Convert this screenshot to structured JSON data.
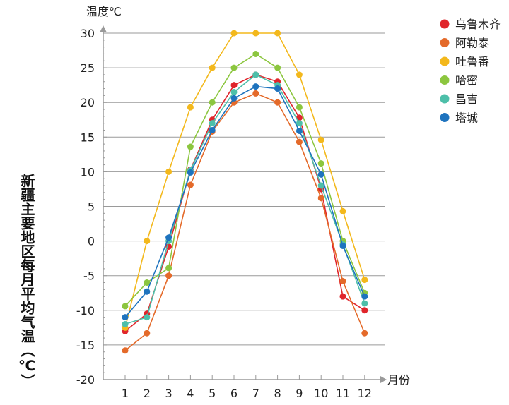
{
  "chart_data": {
    "type": "line",
    "title": "新疆主要地区每月平均气温（℃）",
    "ylabel": "温度℃",
    "xlabel": "月份",
    "ylim": [
      -20,
      30
    ],
    "yticks": [
      30,
      25,
      20,
      15,
      10,
      5,
      0,
      -5,
      -10,
      -15,
      -20
    ],
    "categories": [
      "1",
      "2",
      "3",
      "4",
      "5",
      "6",
      "7",
      "8",
      "9",
      "10",
      "11",
      "12"
    ],
    "series": [
      {
        "name": "乌鲁木齐",
        "color": "#e0252b",
        "values": [
          -13,
          -10.5,
          -0.8,
          10.3,
          17.5,
          22.5,
          24,
          23,
          17.8,
          7.5,
          -8,
          -10
        ]
      },
      {
        "name": "阿勒泰",
        "color": "#e46a2a",
        "values": [
          -15.8,
          -13.3,
          -5,
          8.1,
          15.8,
          20,
          21.3,
          20,
          14.3,
          6.2,
          -5.8,
          -13.3
        ]
      },
      {
        "name": "吐鲁番",
        "color": "#f3b81c",
        "values": [
          -12.5,
          0,
          10,
          19.3,
          25,
          30,
          30,
          30,
          24,
          14.6,
          4.3,
          -5.6
        ]
      },
      {
        "name": "哈密",
        "color": "#8cc63f",
        "values": [
          -9.4,
          -6,
          -3.9,
          13.6,
          20,
          25,
          27,
          25,
          19.3,
          11.2,
          0,
          -7.5
        ]
      },
      {
        "name": "昌吉",
        "color": "#4dbfa9",
        "values": [
          -12,
          -11,
          0,
          10.2,
          17,
          21.5,
          24,
          22.5,
          17,
          8,
          -0.5,
          -9
        ]
      },
      {
        "name": "塔城",
        "color": "#1e73be",
        "values": [
          -11,
          -7.3,
          0.5,
          9.9,
          16,
          20.6,
          22.3,
          22,
          15.9,
          9.6,
          -0.7,
          -8
        ]
      }
    ]
  }
}
